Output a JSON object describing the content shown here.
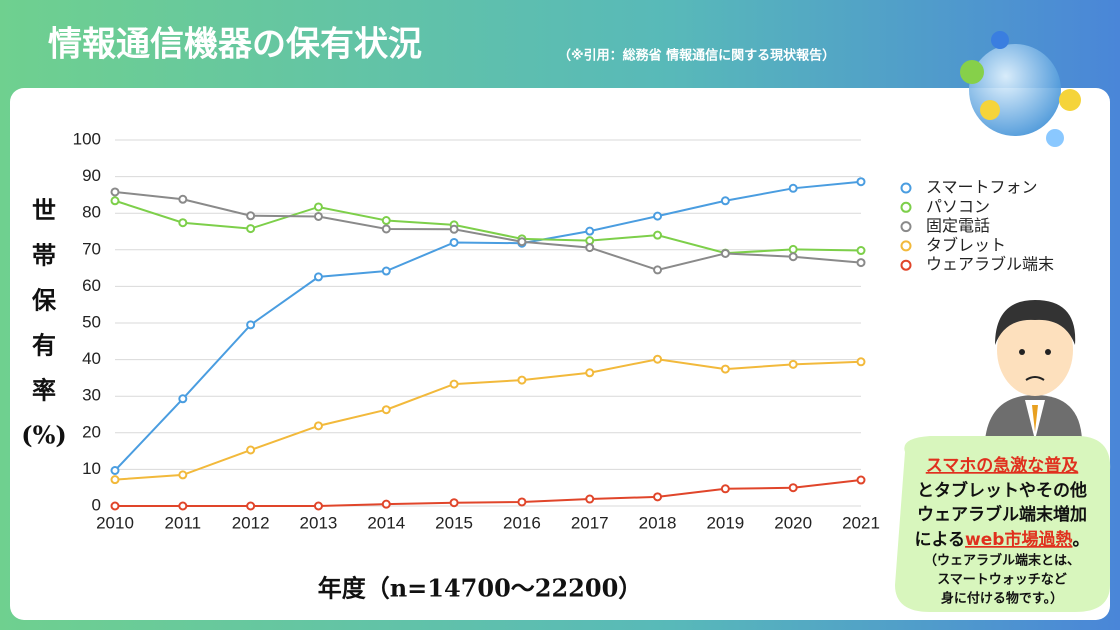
{
  "chart_data": {
    "type": "line",
    "title": "情報通信機器の保有状況",
    "subtitle": "（※引用：総務省 情報通信に関する現状報告）",
    "x_label": "年度（n=14700〜22200）",
    "y_label": [
      "世",
      "帯",
      "保",
      "有",
      "率",
      "(%)"
    ],
    "x": [
      2010,
      2011,
      2012,
      2013,
      2014,
      2015,
      2016,
      2017,
      2018,
      2019,
      2020,
      2021
    ],
    "xlim": [
      2010,
      2021
    ],
    "xticks": [
      2010,
      2011,
      2012,
      2013,
      2014,
      2015,
      2016,
      2017,
      2018,
      2019,
      2020,
      2021
    ],
    "ylim": [
      0,
      100
    ],
    "yticks": [
      0,
      10,
      20,
      30,
      40,
      50,
      60,
      70,
      80,
      90,
      100
    ],
    "grid": true,
    "legend": "right",
    "series": [
      {
        "name": "スマートフォン",
        "color": "#4a9de0",
        "values": [
          9.7,
          29.3,
          49.5,
          62.6,
          64.2,
          72.0,
          71.8,
          75.1,
          79.2,
          83.4,
          86.8,
          88.6
        ]
      },
      {
        "name": "パソコン",
        "color": "#7dcf4a",
        "values": [
          83.4,
          77.4,
          75.8,
          81.7,
          78.0,
          76.8,
          73.0,
          72.5,
          74.0,
          69.1,
          70.1,
          69.8
        ]
      },
      {
        "name": "固定電話",
        "color": "#8a8a8a",
        "values": [
          85.8,
          83.8,
          79.3,
          79.1,
          75.7,
          75.6,
          72.2,
          70.6,
          64.5,
          69.0,
          68.1,
          66.5
        ]
      },
      {
        "name": "タブレット",
        "color": "#f2b93b",
        "values": [
          7.2,
          8.5,
          15.3,
          21.9,
          26.3,
          33.3,
          34.4,
          36.4,
          40.1,
          37.4,
          38.7,
          39.4
        ]
      },
      {
        "name": "ウェアラブル端末",
        "color": "#e0452a",
        "values": [
          0,
          0,
          0,
          0,
          0.5,
          0.9,
          1.1,
          1.9,
          2.5,
          4.7,
          5.0,
          7.1
        ]
      }
    ],
    "annotation": {
      "highlight_1": "スマホの急激な普及",
      "text_1": "とタブレットやその他",
      "text_2": "ウェアラブル端末増加",
      "text_3": "による",
      "highlight_2": "web市場過熱",
      "text_4": "。",
      "note": [
        "（ウェアラブル端末とは、",
        "スマートウォッチなど",
        "身に付ける物です。）"
      ]
    }
  }
}
